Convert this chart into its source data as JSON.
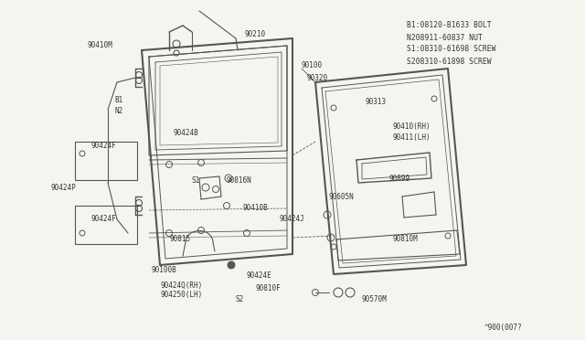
{
  "bg_color": "#f5f5f0",
  "line_color": "#555555",
  "text_color": "#333333",
  "fig_width": 6.4,
  "fig_height": 3.72,
  "dpi": 100,
  "parts_legend": [
    "B1:08120-B1633 BOLT",
    "N208911-60837 NUT",
    "S1:08310-61698 SCREW",
    "S208310-61898 SCREW"
  ],
  "diagram_number": "^900(007?"
}
